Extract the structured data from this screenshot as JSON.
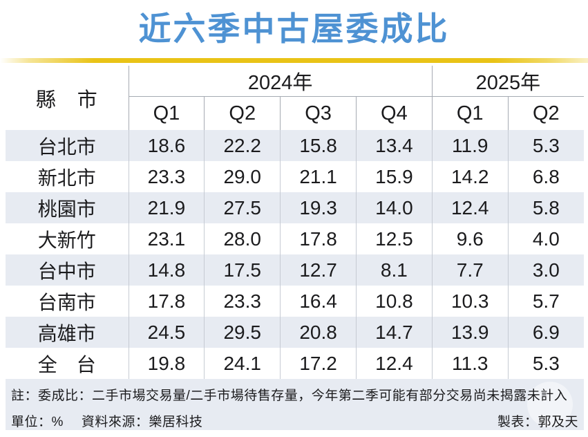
{
  "page": {
    "title": "近六季中古屋委成比"
  },
  "colors": {
    "title_blue": "#4e92d3",
    "accent_yellow": "#e9c316",
    "row_stripe": "#e7ebf2"
  },
  "table": {
    "corner_label": "縣　市",
    "year_groups": [
      {
        "label": "2024年",
        "span": 4
      },
      {
        "label": "2025年",
        "span": 2
      }
    ],
    "quarters": [
      "Q1",
      "Q2",
      "Q3",
      "Q4",
      "Q1",
      "Q2"
    ],
    "rows": [
      {
        "label": "台北市",
        "values": [
          "18.6",
          "22.2",
          "15.8",
          "13.4",
          "11.9",
          "5.3"
        ]
      },
      {
        "label": "新北市",
        "values": [
          "23.3",
          "29.0",
          "21.1",
          "15.9",
          "14.2",
          "6.8"
        ]
      },
      {
        "label": "桃園市",
        "values": [
          "21.9",
          "27.5",
          "19.3",
          "14.0",
          "12.4",
          "5.8"
        ]
      },
      {
        "label": "大新竹",
        "values": [
          "23.1",
          "28.0",
          "17.8",
          "12.5",
          "9.6",
          "4.0"
        ]
      },
      {
        "label": "台中市",
        "values": [
          "14.8",
          "17.5",
          "12.7",
          "8.1",
          "7.7",
          "3.0"
        ]
      },
      {
        "label": "台南市",
        "values": [
          "17.8",
          "23.3",
          "16.4",
          "10.8",
          "10.3",
          "5.7"
        ]
      },
      {
        "label": "高雄市",
        "values": [
          "24.5",
          "29.5",
          "20.8",
          "14.7",
          "13.9",
          "6.9"
        ]
      },
      {
        "label": "全　台",
        "values": [
          "19.8",
          "24.1",
          "17.2",
          "12.4",
          "11.3",
          "5.3"
        ]
      }
    ]
  },
  "footer": {
    "note": "註：委成比：二手市場交易量/二手市場待售存量，今年第二季可能有部分交易尚未揭露未計入",
    "unit": "單位：%",
    "source": "資料來源：樂居科技",
    "credit": "製表：郭及天"
  },
  "chart_data": {
    "type": "table",
    "title": "近六季中古屋委成比",
    "unit": "%",
    "column_groups": [
      "2024年",
      "2024年",
      "2024年",
      "2024年",
      "2025年",
      "2025年"
    ],
    "columns": [
      "2024 Q1",
      "2024 Q2",
      "2024 Q3",
      "2024 Q4",
      "2025 Q1",
      "2025 Q2"
    ],
    "row_header": "縣市",
    "series": [
      {
        "name": "台北市",
        "values": [
          18.6,
          22.2,
          15.8,
          13.4,
          11.9,
          5.3
        ]
      },
      {
        "name": "新北市",
        "values": [
          23.3,
          29.0,
          21.1,
          15.9,
          14.2,
          6.8
        ]
      },
      {
        "name": "桃園市",
        "values": [
          21.9,
          27.5,
          19.3,
          14.0,
          12.4,
          5.8
        ]
      },
      {
        "name": "大新竹",
        "values": [
          23.1,
          28.0,
          17.8,
          12.5,
          9.6,
          4.0
        ]
      },
      {
        "name": "台中市",
        "values": [
          14.8,
          17.5,
          12.7,
          8.1,
          7.7,
          3.0
        ]
      },
      {
        "name": "台南市",
        "values": [
          17.8,
          23.3,
          16.4,
          10.8,
          10.3,
          5.7
        ]
      },
      {
        "name": "高雄市",
        "values": [
          24.5,
          29.5,
          20.8,
          14.7,
          13.9,
          6.9
        ]
      },
      {
        "name": "全台",
        "values": [
          19.8,
          24.1,
          17.2,
          12.4,
          11.3,
          5.3
        ]
      }
    ],
    "note": "委成比：二手市場交易量/二手市場待售存量，今年第二季可能有部分交易尚未揭露未計入",
    "source": "樂居科技",
    "credit": "郭及天"
  }
}
